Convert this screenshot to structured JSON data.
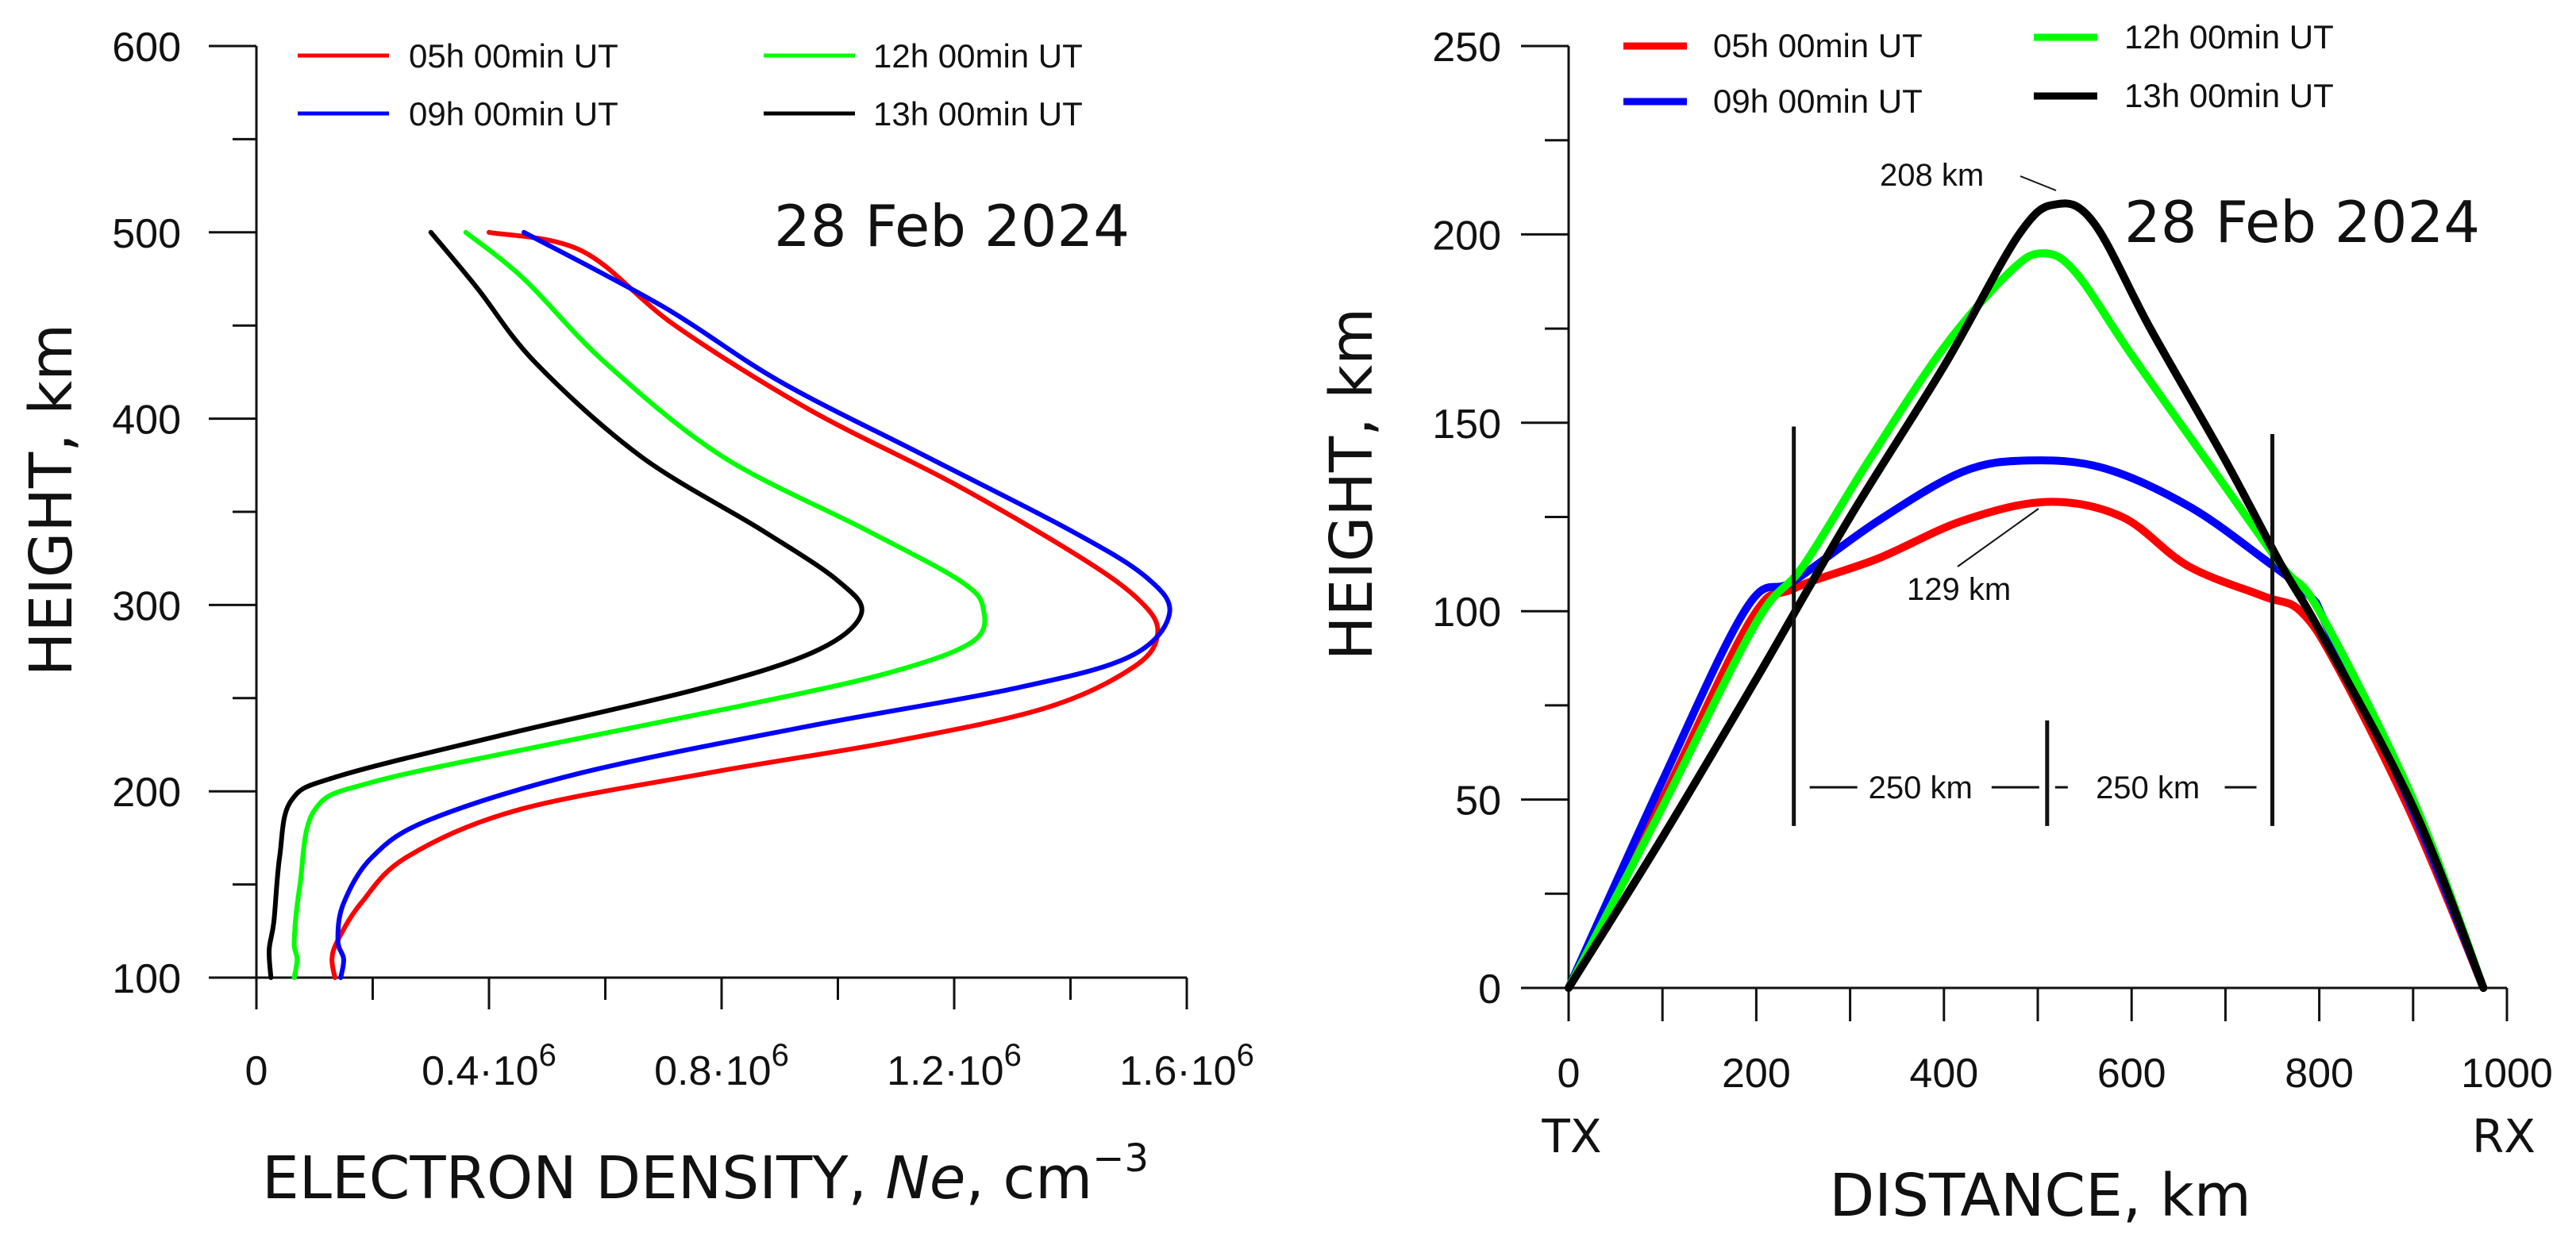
{
  "colors": {
    "c05": "#ff0000",
    "c09": "#0000ff",
    "c12": "#00ff00",
    "c13": "#000000"
  },
  "chart_data": [
    {
      "type": "line",
      "title": "28 Feb 2024",
      "xlabel_prefix": "ELECTRON DENSITY, ",
      "xlabel_var": "Ne",
      "xlabel_unit": ", cm",
      "xlabel_exp": "−3",
      "ylabel": "HEIGHT, km",
      "xlim": [
        0,
        1600000
      ],
      "ylim": [
        100,
        600
      ],
      "xticks": [
        {
          "value": 0,
          "label": "0",
          "exp": ""
        },
        {
          "value": 400000,
          "label": "0.4·10",
          "exp": "6"
        },
        {
          "value": 800000,
          "label": "0.8·10",
          "exp": "6"
        },
        {
          "value": 1200000,
          "label": "1.2·10",
          "exp": "6"
        },
        {
          "value": 1600000,
          "label": "1.6·10",
          "exp": "6"
        }
      ],
      "xminor": [
        200000,
        600000,
        1000000,
        1400000
      ],
      "yticks": [
        100,
        200,
        300,
        400,
        500,
        600
      ],
      "yminor": [
        150,
        250,
        350,
        450,
        550
      ],
      "legend": [
        "05h 00min UT",
        "09h 00min UT",
        "12h 00min UT",
        "13h 00min UT"
      ],
      "series": [
        {
          "name": "05h 00min UT",
          "color": "#ff0000",
          "points": [
            [
              135000,
              100
            ],
            [
              130000,
              110
            ],
            [
              140000,
              120
            ],
            [
              180000,
              140
            ],
            [
              260000,
              165
            ],
            [
              450000,
              190
            ],
            [
              780000,
              210
            ],
            [
              1100000,
              227
            ],
            [
              1360000,
              245
            ],
            [
              1510000,
              267
            ],
            [
              1550000,
              285
            ],
            [
              1520000,
              302
            ],
            [
              1420000,
              325
            ],
            [
              1200000,
              365
            ],
            [
              950000,
              405
            ],
            [
              720000,
              450
            ],
            [
              560000,
              490
            ],
            [
              400000,
              500
            ]
          ]
        },
        {
          "name": "09h 00min UT",
          "color": "#0000ff",
          "points": [
            [
              145000,
              100
            ],
            [
              150000,
              110
            ],
            [
              140000,
              120
            ],
            [
              150000,
              140
            ],
            [
              200000,
              165
            ],
            [
              300000,
              185
            ],
            [
              560000,
              210
            ],
            [
              950000,
              235
            ],
            [
              1300000,
              255
            ],
            [
              1500000,
              272
            ],
            [
              1570000,
              295
            ],
            [
              1530000,
              315
            ],
            [
              1400000,
              340
            ],
            [
              1150000,
              380
            ],
            [
              900000,
              420
            ],
            [
              700000,
              460
            ],
            [
              460000,
              500
            ]
          ]
        },
        {
          "name": "12h 00min UT",
          "color": "#00ff00",
          "points": [
            [
              65000,
              100
            ],
            [
              70000,
              110
            ],
            [
              65000,
              120
            ],
            [
              75000,
              150
            ],
            [
              100000,
              190
            ],
            [
              200000,
              205
            ],
            [
              500000,
              225
            ],
            [
              820000,
              245
            ],
            [
              1080000,
              263
            ],
            [
              1230000,
              280
            ],
            [
              1250000,
              298
            ],
            [
              1210000,
              313
            ],
            [
              1050000,
              340
            ],
            [
              800000,
              380
            ],
            [
              600000,
              430
            ],
            [
              460000,
              475
            ],
            [
              360000,
              500
            ]
          ]
        },
        {
          "name": "13h 00min UT",
          "color": "#000000",
          "points": [
            [
              25000,
              100
            ],
            [
              22000,
              115
            ],
            [
              30000,
              130
            ],
            [
              40000,
              165
            ],
            [
              60000,
              195
            ],
            [
              140000,
              208
            ],
            [
              420000,
              230
            ],
            [
              760000,
              255
            ],
            [
              960000,
              275
            ],
            [
              1040000,
              295
            ],
            [
              1000000,
              313
            ],
            [
              870000,
              340
            ],
            [
              660000,
              380
            ],
            [
              480000,
              430
            ],
            [
              380000,
              470
            ],
            [
              300000,
              500
            ]
          ]
        }
      ]
    },
    {
      "type": "line",
      "title": "28 Feb 2024",
      "xlabel": "DISTANCE, km",
      "ylabel": "HEIGHT, km",
      "xlim": [
        0,
        1000
      ],
      "ylim": [
        0,
        250
      ],
      "xticks": [
        0,
        200,
        400,
        600,
        800,
        1000
      ],
      "xminor": [
        100,
        300,
        500,
        700,
        900
      ],
      "yticks": [
        0,
        50,
        100,
        150,
        200,
        250
      ],
      "yminor": [
        25,
        75,
        125,
        175,
        225
      ],
      "endpoints": {
        "tx": "TX",
        "rx": "RX"
      },
      "legend": [
        "05h 00min UT",
        "12h 00min UT",
        "09h 00min UT",
        "13h 00min UT"
      ],
      "series": [
        {
          "name": "05h 00min UT",
          "color": "#ff0000",
          "points": [
            [
              0,
              0
            ],
            [
              100,
              50
            ],
            [
              195,
              98
            ],
            [
              240,
              106
            ],
            [
              330,
              114
            ],
            [
              420,
              124
            ],
            [
              510,
              129
            ],
            [
              590,
              125
            ],
            [
              660,
              112
            ],
            [
              740,
              104
            ],
            [
              780,
              100
            ],
            [
              820,
              85
            ],
            [
              900,
              45
            ],
            [
              975,
              0
            ]
          ]
        },
        {
          "name": "09h 00min UT",
          "color": "#0000ff",
          "points": [
            [
              0,
              0
            ],
            [
              100,
              55
            ],
            [
              190,
              101
            ],
            [
              240,
              108
            ],
            [
              330,
              124
            ],
            [
              420,
              137
            ],
            [
              490,
              140
            ],
            [
              570,
              138
            ],
            [
              660,
              128
            ],
            [
              740,
              114
            ],
            [
              790,
              104
            ],
            [
              810,
              95
            ],
            [
              900,
              47
            ],
            [
              975,
              0
            ]
          ]
        },
        {
          "name": "12h 00min UT",
          "color": "#00ff00",
          "points": [
            [
              0,
              0
            ],
            [
              100,
              48
            ],
            [
              200,
              97
            ],
            [
              250,
              112
            ],
            [
              320,
              140
            ],
            [
              400,
              170
            ],
            [
              470,
              190
            ],
            [
              505,
              195
            ],
            [
              540,
              190
            ],
            [
              600,
              168
            ],
            [
              680,
              140
            ],
            [
              760,
              112
            ],
            [
              800,
              100
            ],
            [
              900,
              50
            ],
            [
              975,
              0
            ]
          ]
        },
        {
          "name": "13h 00min UT",
          "color": "#000000",
          "points": [
            [
              0,
              0
            ],
            [
              100,
              40
            ],
            [
              200,
              82
            ],
            [
              300,
              125
            ],
            [
              400,
              165
            ],
            [
              480,
              200
            ],
            [
              520,
              208
            ],
            [
              560,
              203
            ],
            [
              620,
              175
            ],
            [
              700,
              140
            ],
            [
              760,
              112
            ],
            [
              800,
              95
            ],
            [
              900,
              48
            ],
            [
              975,
              0
            ]
          ]
        }
      ],
      "annotations": {
        "peak_13h": "208 km",
        "peak_05h": "129 km",
        "left_span": "250 km",
        "right_span": "250 km"
      },
      "markers": {
        "left_x": 240,
        "center_x": 510,
        "right_x": 750
      }
    }
  ]
}
